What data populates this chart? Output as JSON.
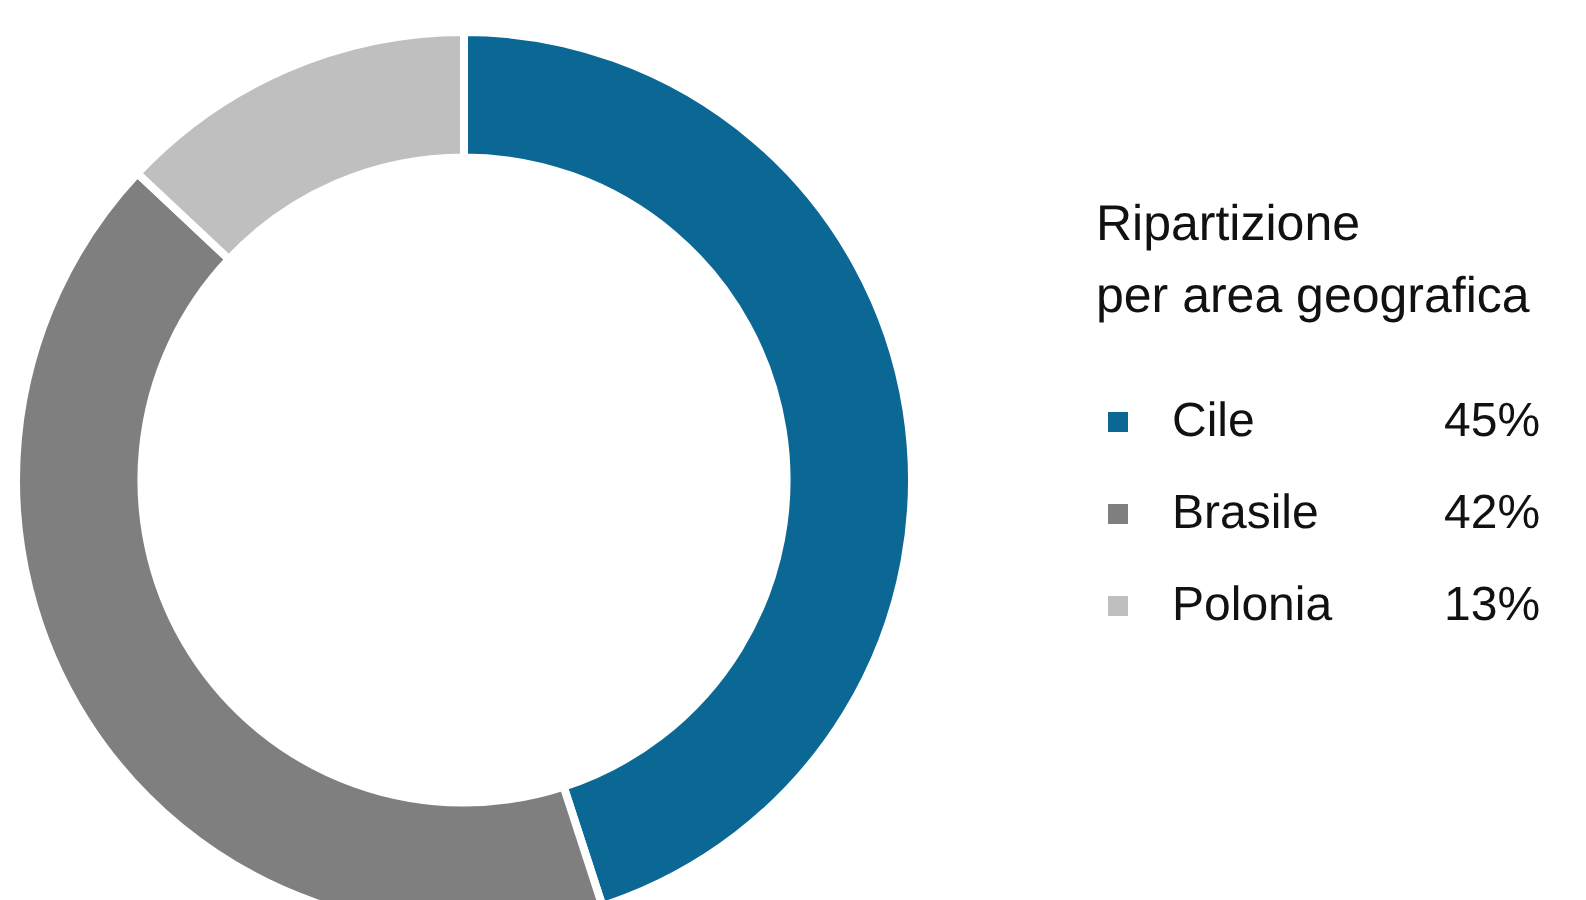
{
  "chart_data": {
    "type": "donut",
    "legend_title": "Ripartizione\nper area geografica",
    "categories": [
      "Cile",
      "Brasile",
      "Polonia"
    ],
    "values": [
      45,
      42,
      13
    ],
    "colors": [
      "#0b6794",
      "#7f7f7f",
      "#bfbfbf"
    ],
    "legend": "right",
    "value_labels": [
      "45%",
      "42%",
      "13%"
    ]
  }
}
